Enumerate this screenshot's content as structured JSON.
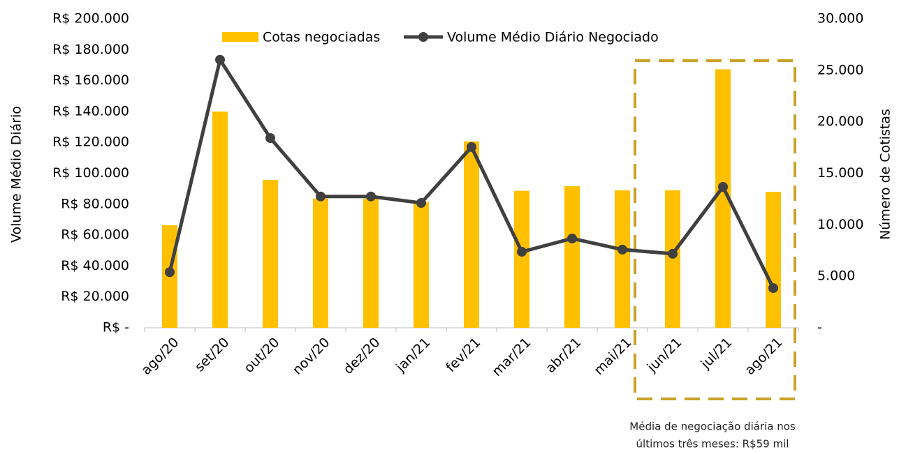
{
  "chart_data": {
    "type": "bar_line",
    "categories": [
      "ago/20",
      "set/20",
      "out/20",
      "nov/20",
      "dez/20",
      "jan/21",
      "fev/21",
      "mar/21",
      "abr/21",
      "mai/21",
      "jun/21",
      "jul/21",
      "ago/21"
    ],
    "series": [
      {
        "name": "Cotas negociadas",
        "type": "bar",
        "axis": "y2",
        "color": "#FFC000",
        "values": [
          9950,
          21000,
          14350,
          12550,
          12550,
          12200,
          18100,
          13300,
          13750,
          13350,
          13350,
          25100,
          13200
        ]
      },
      {
        "name": "Volume Médio Diário Negociado",
        "type": "line",
        "axis": "y",
        "color": "#404040",
        "values": [
          36000,
          173500,
          122800,
          85000,
          85000,
          80800,
          117000,
          49200,
          57800,
          50600,
          47900,
          91200,
          25700
        ]
      }
    ],
    "ylabel": "Volume Médio Diário",
    "y2label": "Número de Cotistas",
    "ylim": [
      0,
      200000
    ],
    "yticks": [
      {
        "value": 0,
        "label": "R$ -"
      },
      {
        "value": 20000,
        "label": "R$ 20.000"
      },
      {
        "value": 40000,
        "label": "R$ 40.000"
      },
      {
        "value": 60000,
        "label": "R$ 60.000"
      },
      {
        "value": 80000,
        "label": "R$ 80.000"
      },
      {
        "value": 100000,
        "label": "R$ 100.000"
      },
      {
        "value": 120000,
        "label": "R$ 120.000"
      },
      {
        "value": 140000,
        "label": "R$ 140.000"
      },
      {
        "value": 160000,
        "label": "R$ 160.000"
      },
      {
        "value": 180000,
        "label": "R$ 180.000"
      },
      {
        "value": 200000,
        "label": "R$ 200.000"
      }
    ],
    "y2lim": [
      0,
      30000
    ],
    "y2ticks": [
      {
        "value": 0,
        "label": "-"
      },
      {
        "value": 5000,
        "label": "5.000"
      },
      {
        "value": 10000,
        "label": "10.000"
      },
      {
        "value": 15000,
        "label": "15.000"
      },
      {
        "value": 20000,
        "label": "20.000"
      },
      {
        "value": 25000,
        "label": "25.000"
      },
      {
        "value": 30000,
        "label": "30.000"
      }
    ],
    "annotation": [
      "Média de negociação diária nos",
      "últimos três meses: R$59 mil"
    ],
    "legend": "top"
  }
}
